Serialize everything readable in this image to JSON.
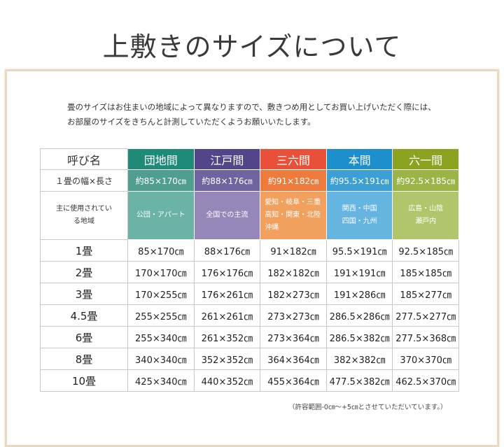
{
  "title": "上敷きのサイズについて",
  "intro": [
    "畳のサイズはお住まいの地域によって異なりますので、敷きつめ用としてお買い上げいただく際には、",
    "お部屋のサイズをきちんと計測していただくようお願いいたします。"
  ],
  "table": {
    "row_labels": {
      "name": "呼び名",
      "size": "１畳の幅×長さ",
      "region": "主に使用されている地域"
    },
    "columns": [
      {
        "name": "団地間",
        "size": "約85×170㎝",
        "region": "公団・アパート",
        "colors": [
          "#1f8a78",
          "#4f9e8e",
          "#6ab3a5"
        ]
      },
      {
        "name": "江戸間",
        "size": "約88×176㎝",
        "region": "全国での主流",
        "colors": [
          "#54458a",
          "#6f63a0",
          "#9587b7"
        ]
      },
      {
        "name": "三六間",
        "size": "約91×182㎝",
        "region": "愛知・岐阜・三重\n高知・関東・北陸\n沖縄",
        "colors": [
          "#e8503a",
          "#ee7a3c",
          "#f1a05e"
        ]
      },
      {
        "name": "本間",
        "size": "約95.5×191㎝",
        "region": "関西・中国\n四国・九州",
        "colors": [
          "#1e8fcd",
          "#3c9fd5",
          "#66b4e0"
        ]
      },
      {
        "name": "六一間",
        "size": "約92.5×185㎝",
        "region": "広島・山陰\n瀬戸内",
        "colors": [
          "#8ba321",
          "#9cb445",
          "#b1c66c"
        ]
      }
    ],
    "rows": [
      {
        "label": "1畳",
        "values": [
          "85×170㎝",
          "88×176㎝",
          "91×182㎝",
          "95.5×191㎝",
          "92.5×185㎝"
        ]
      },
      {
        "label": "2畳",
        "values": [
          "170×170㎝",
          "176×176㎝",
          "182×182㎝",
          "191×191㎝",
          "185×185㎝"
        ]
      },
      {
        "label": "3畳",
        "values": [
          "170×255㎝",
          "176×261㎝",
          "182×273㎝",
          "191×286㎝",
          "185×277㎝"
        ]
      },
      {
        "label": "4.5畳",
        "values": [
          "255×255㎝",
          "261×261㎝",
          "273×273㎝",
          "286.5×286㎝",
          "277.5×277㎝"
        ]
      },
      {
        "label": "6畳",
        "values": [
          "255×340㎝",
          "261×352㎝",
          "273×364㎝",
          "286.5×382㎝",
          "277.5×368㎝"
        ]
      },
      {
        "label": "8畳",
        "values": [
          "340×340㎝",
          "352×352㎝",
          "364×364㎝",
          "382×382㎝",
          "370×370㎝"
        ]
      },
      {
        "label": "10畳",
        "values": [
          "425×340㎝",
          "440×352㎝",
          "455×364㎝",
          "477.5×382㎝",
          "462.5×370㎝"
        ]
      }
    ]
  },
  "note": "（許容範囲-0㎝～+5㎝とさせていただいています。）"
}
